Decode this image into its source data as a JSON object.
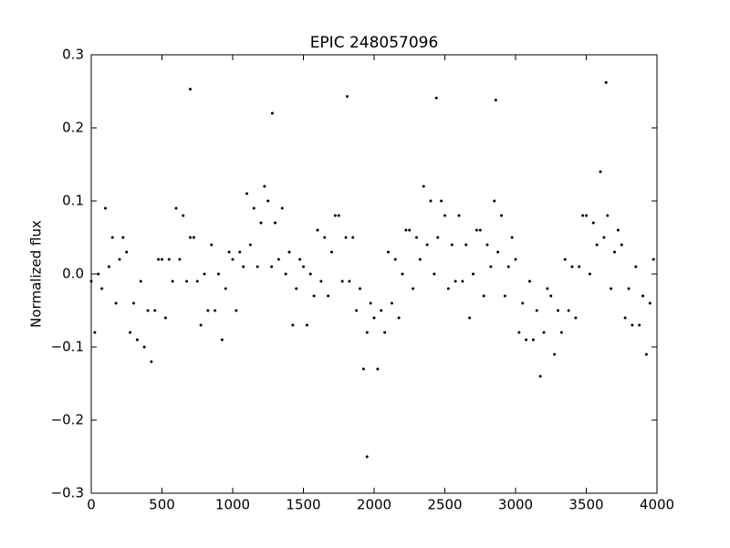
{
  "chart_data": {
    "type": "scatter",
    "title": "EPIC 248057096",
    "y_label": "Normalized flux",
    "color": "#000000",
    "x": [
      0,
      25,
      50,
      75,
      100,
      125,
      150,
      175,
      200,
      225,
      250,
      275,
      300,
      325,
      350,
      375,
      400,
      425,
      450,
      475,
      500,
      525,
      550,
      575,
      600,
      625,
      650,
      675,
      700,
      725,
      750,
      775,
      800,
      825,
      850,
      875,
      900,
      925,
      950,
      975,
      1000,
      1025,
      1050,
      1075,
      1100,
      1125,
      1150,
      1175,
      1200,
      1225,
      1250,
      1275,
      1300,
      1325,
      1350,
      1375,
      1400,
      1425,
      1450,
      1475,
      1500,
      1525,
      1550,
      1575,
      1600,
      1625,
      1650,
      1675,
      1700,
      1725,
      1750,
      1775,
      1800,
      1825,
      1850,
      1875,
      1900,
      1925,
      1950,
      1975,
      2000,
      2025,
      2050,
      2075,
      2100,
      2125,
      2150,
      2175,
      2200,
      2225,
      2250,
      2275,
      2300,
      2325,
      2350,
      2375,
      2400,
      2425,
      2450,
      2475,
      2500,
      2525,
      2550,
      2575,
      2600,
      2625,
      2650,
      2675,
      2700,
      2725,
      2750,
      2775,
      2800,
      2825,
      2850,
      2875,
      2900,
      2925,
      2950,
      2975,
      3000,
      3025,
      3050,
      3075,
      3100,
      3125,
      3150,
      3175,
      3200,
      3225,
      3250,
      3275,
      3300,
      3325,
      3350,
      3375,
      3400,
      3425,
      3450,
      3475,
      3500,
      3525,
      3550,
      3575,
      3600,
      3625,
      3650,
      3675,
      3700,
      3725,
      3750,
      3775,
      3800,
      3825,
      3850,
      3875,
      3900,
      3925,
      3950,
      3975,
      700,
      3640,
      1950,
      1810,
      2440,
      2860,
      1280
    ],
    "y": [
      -0.01,
      -0.08,
      0.0,
      -0.02,
      0.09,
      0.01,
      0.05,
      -0.04,
      0.02,
      0.05,
      0.03,
      -0.08,
      -0.04,
      -0.09,
      -0.01,
      -0.1,
      -0.05,
      -0.12,
      -0.05,
      0.02,
      0.02,
      -0.06,
      0.02,
      -0.01,
      0.09,
      0.02,
      0.08,
      -0.01,
      0.05,
      0.05,
      -0.01,
      -0.07,
      0.0,
      -0.05,
      0.04,
      -0.05,
      0.0,
      -0.09,
      -0.02,
      0.03,
      0.02,
      -0.05,
      0.03,
      0.01,
      0.11,
      0.04,
      0.09,
      0.01,
      0.07,
      0.12,
      0.1,
      0.01,
      0.07,
      0.02,
      0.09,
      0.0,
      0.03,
      -0.07,
      -0.02,
      0.02,
      0.01,
      -0.07,
      0.0,
      -0.03,
      0.06,
      -0.01,
      0.05,
      -0.03,
      0.03,
      0.08,
      0.08,
      -0.01,
      0.05,
      -0.01,
      0.05,
      -0.05,
      -0.02,
      -0.13,
      -0.08,
      -0.04,
      -0.06,
      -0.13,
      -0.05,
      -0.08,
      0.03,
      -0.04,
      0.02,
      -0.06,
      0.0,
      0.06,
      0.06,
      -0.02,
      0.05,
      0.02,
      0.12,
      0.04,
      0.1,
      0.0,
      0.05,
      0.1,
      0.08,
      -0.02,
      0.04,
      -0.01,
      0.08,
      -0.01,
      0.04,
      -0.06,
      0.0,
      0.06,
      0.06,
      -0.03,
      0.04,
      0.01,
      0.1,
      0.03,
      0.08,
      -0.03,
      0.01,
      0.05,
      0.02,
      -0.08,
      -0.04,
      -0.09,
      -0.01,
      -0.09,
      -0.05,
      -0.14,
      -0.08,
      -0.02,
      -0.03,
      -0.11,
      -0.05,
      -0.08,
      0.02,
      -0.05,
      0.01,
      -0.06,
      0.01,
      0.08,
      0.08,
      0.0,
      0.07,
      0.04,
      0.14,
      0.05,
      0.08,
      -0.02,
      0.03,
      0.06,
      0.04,
      -0.06,
      -0.02,
      -0.07,
      0.01,
      -0.07,
      -0.03,
      -0.11,
      -0.04,
      0.02,
      0.253,
      0.262,
      -0.25,
      0.243,
      0.241,
      0.238,
      0.22
    ],
    "xlim": [
      0,
      4000
    ],
    "xticks": [
      0,
      500,
      1000,
      1500,
      2000,
      2500,
      3000,
      3500,
      4000
    ],
    "ylim": [
      -0.3,
      0.3
    ],
    "yticks": [
      {
        "value": -0.3,
        "label": "−0.3"
      },
      {
        "value": -0.2,
        "label": "−0.2"
      },
      {
        "value": -0.1,
        "label": "−0.1"
      },
      {
        "value": 0,
        "label": "0.0"
      },
      0.1,
      0.2,
      0.3
    ]
  }
}
